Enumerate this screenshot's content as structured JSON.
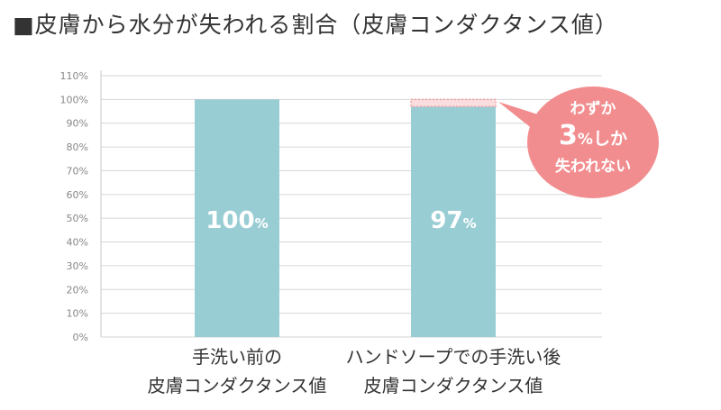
{
  "title": "■皮膚から水分が失われる割合（皮膚コンダクタンス値）",
  "chart_data": {
    "type": "bar",
    "title": "■皮膚から水分が失われる割合（皮膚コンダクタンス値）",
    "categories": [
      [
        "手洗い前の",
        "皮膚コンダクタンス値"
      ],
      [
        "ハンドソープでの手洗い後",
        "皮膚コンダクタンス値"
      ]
    ],
    "values": [
      100,
      97
    ],
    "value_labels": [
      {
        "number": "100",
        "unit": "%"
      },
      {
        "number": "97",
        "unit": "%"
      }
    ],
    "ylim": [
      0,
      110
    ],
    "yticks": [
      "0%",
      "10%",
      "20%",
      "30%",
      "40%",
      "50%",
      "60%",
      "70%",
      "80%",
      "90%",
      "100%",
      "110%"
    ],
    "grid": true,
    "lost_portion": {
      "from": 97,
      "to": 100
    },
    "annotation": {
      "line1": "わずか",
      "number": "3",
      "unit": "%",
      "suffix": "しか",
      "line3": "失われない"
    },
    "colors": {
      "bar": "#99cdd4",
      "lost": "#f2a0a3",
      "callout": "#f28d8f",
      "grid": "#d6d6d6",
      "axis": "#c8c8c8"
    }
  }
}
